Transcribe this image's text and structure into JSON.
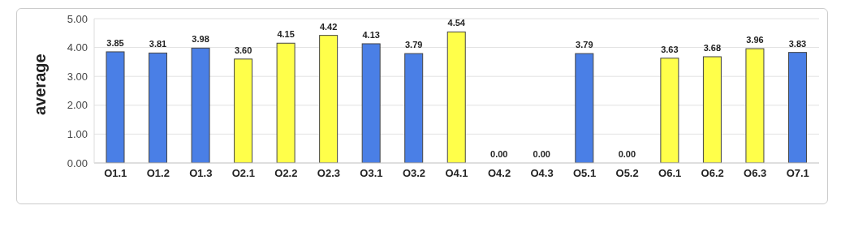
{
  "chart_data": {
    "type": "bar",
    "ylabel": "average",
    "categories": [
      "O1.1",
      "O1.2",
      "O1.3",
      "O2.1",
      "O2.2",
      "O2.3",
      "O3.1",
      "O3.2",
      "O4.1",
      "O4.2",
      "O4.3",
      "O5.1",
      "O5.2",
      "O6.1",
      "O6.2",
      "O6.3",
      "O7.1"
    ],
    "values": [
      3.85,
      3.81,
      3.98,
      3.6,
      4.15,
      4.42,
      4.13,
      3.79,
      4.54,
      0,
      0,
      3.79,
      0,
      3.63,
      3.68,
      3.96,
      3.83
    ],
    "value_labels": [
      "3.85",
      "3.81",
      "3.98",
      "3.60",
      "4.15",
      "4.42",
      "4.13",
      "3.79",
      "4.54",
      "0.00",
      "0.00",
      "3.79",
      "0.00",
      "3.63",
      "3.68",
      "3.96",
      "3.83"
    ],
    "colors": [
      "#4a7fe6",
      "#4a7fe6",
      "#4a7fe6",
      "#ffff4a",
      "#ffff4a",
      "#ffff4a",
      "#4a7fe6",
      "#4a7fe6",
      "#ffff4a",
      "#ffff4a",
      "#ffff4a",
      "#4a7fe6",
      "#4a7fe6",
      "#ffff4a",
      "#ffff4a",
      "#ffff4a",
      "#4a7fe6"
    ],
    "ylim": [
      0,
      5
    ],
    "yticks": [
      {
        "value": 0,
        "label": "0.00"
      },
      {
        "value": 1,
        "label": "1.00"
      },
      {
        "value": 2,
        "label": "2.00"
      },
      {
        "value": 3,
        "label": "3.00"
      },
      {
        "value": 4,
        "label": "4.00"
      },
      {
        "value": 5,
        "label": "5.00"
      }
    ],
    "grid": "y"
  }
}
